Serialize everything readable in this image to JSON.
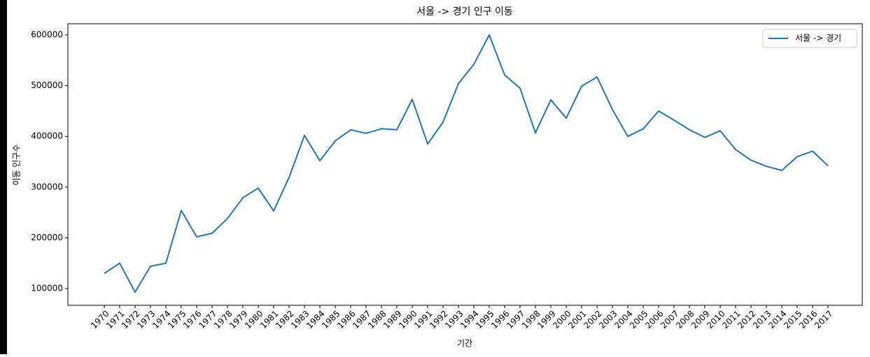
{
  "chart_data": {
    "type": "line",
    "title": "서울 -> 경기 인구 이동",
    "x_label": "기간",
    "y_label": "이동 인구수",
    "categories": [
      "1970",
      "1971",
      "1972",
      "1973",
      "1974",
      "1975",
      "1976",
      "1977",
      "1978",
      "1979",
      "1980",
      "1981",
      "1982",
      "1983",
      "1984",
      "1985",
      "1986",
      "1987",
      "1988",
      "1989",
      "1990",
      "1991",
      "1992",
      "1993",
      "1994",
      "1995",
      "1996",
      "1997",
      "1998",
      "1999",
      "2000",
      "2001",
      "2002",
      "2003",
      "2004",
      "2005",
      "2006",
      "2007",
      "2008",
      "2009",
      "2010",
      "2011",
      "2012",
      "2013",
      "2014",
      "2015",
      "2016",
      "2017"
    ],
    "series": [
      {
        "name": "서울 -> 경기",
        "color": "#1f77b4",
        "values": [
          130000,
          150000,
          93000,
          144000,
          150000,
          254000,
          202000,
          209000,
          238000,
          279000,
          298000,
          253000,
          319000,
          402000,
          352000,
          391000,
          413000,
          406000,
          415000,
          413000,
          473000,
          385000,
          428000,
          504000,
          542000,
          600000,
          521000,
          495000,
          407000,
          472000,
          436000,
          499000,
          517000,
          453000,
          400000,
          415000,
          450000,
          432000,
          413000,
          398000,
          411000,
          374000,
          353000,
          341000,
          333000,
          360000,
          371000,
          342000
        ]
      }
    ],
    "ylim": [
      67000,
      622000
    ],
    "yticks": [
      100000,
      200000,
      300000,
      400000,
      500000,
      600000
    ],
    "legend": "upper right",
    "grid": false
  }
}
